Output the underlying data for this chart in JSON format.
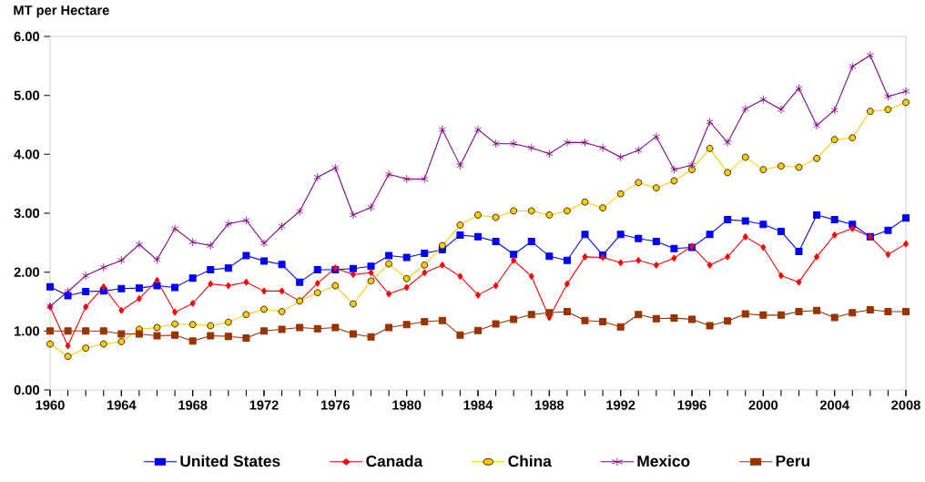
{
  "chart_data": {
    "type": "line",
    "ylabel": "MT per Hectare",
    "x": [
      1960,
      1961,
      1962,
      1963,
      1964,
      1965,
      1966,
      1967,
      1968,
      1969,
      1970,
      1971,
      1972,
      1973,
      1974,
      1975,
      1976,
      1977,
      1978,
      1979,
      1980,
      1981,
      1982,
      1983,
      1984,
      1985,
      1986,
      1987,
      1988,
      1989,
      1990,
      1991,
      1992,
      1993,
      1994,
      1995,
      1996,
      1997,
      1998,
      1999,
      2000,
      2001,
      2002,
      2003,
      2004,
      2005,
      2006,
      2007,
      2008
    ],
    "xlim": [
      1960,
      2008
    ],
    "xticks": [
      1960,
      1964,
      1968,
      1972,
      1976,
      1980,
      1984,
      1988,
      1992,
      1996,
      2000,
      2004,
      2008
    ],
    "ylim": [
      0,
      6
    ],
    "yticks": [
      {
        "value": 0,
        "label": "0.00"
      },
      {
        "value": 1,
        "label": "1.00"
      },
      {
        "value": 2,
        "label": "2.00"
      },
      {
        "value": 3,
        "label": "3.00"
      },
      {
        "value": 4,
        "label": "4.00"
      },
      {
        "value": 5,
        "label": "5.00"
      },
      {
        "value": 6,
        "label": "6.00"
      }
    ],
    "grid": false,
    "legend": "bottom",
    "line_style": "solid",
    "series": [
      {
        "name": "United States",
        "color": "#0000ff",
        "marker": "square",
        "values": [
          1.75,
          1.6,
          1.67,
          1.68,
          1.72,
          1.73,
          1.77,
          1.74,
          1.9,
          2.04,
          2.07,
          2.28,
          2.19,
          2.13,
          1.83,
          2.04,
          2.04,
          2.06,
          2.1,
          2.28,
          2.25,
          2.32,
          2.38,
          2.63,
          2.6,
          2.52,
          2.3,
          2.52,
          2.27,
          2.2,
          2.64,
          2.29,
          2.64,
          2.57,
          2.52,
          2.4,
          2.42,
          2.64,
          2.89,
          2.87,
          2.81,
          2.69,
          2.35,
          2.97,
          2.89,
          2.81,
          2.6,
          2.71,
          2.92
        ]
      },
      {
        "name": "Canada",
        "color": "#ff0000",
        "marker": "diamond",
        "values": [
          1.41,
          0.75,
          1.41,
          1.75,
          1.35,
          1.55,
          1.86,
          1.32,
          1.47,
          1.8,
          1.77,
          1.83,
          1.68,
          1.68,
          1.51,
          1.81,
          2.07,
          1.96,
          1.99,
          1.63,
          1.74,
          1.99,
          2.12,
          1.93,
          1.61,
          1.77,
          2.2,
          1.93,
          1.23,
          1.8,
          2.26,
          2.25,
          2.16,
          2.2,
          2.12,
          2.24,
          2.44,
          2.12,
          2.26,
          2.6,
          2.42,
          1.94,
          1.83,
          2.26,
          2.63,
          2.74,
          2.6,
          2.3,
          2.48
        ]
      },
      {
        "name": "China",
        "color": "#ffcc00",
        "marker": "circle",
        "values": [
          0.78,
          0.57,
          0.71,
          0.78,
          0.82,
          1.03,
          1.06,
          1.12,
          1.11,
          1.09,
          1.15,
          1.28,
          1.37,
          1.33,
          1.51,
          1.65,
          1.77,
          1.46,
          1.85,
          2.14,
          1.89,
          2.12,
          2.45,
          2.8,
          2.97,
          2.93,
          3.04,
          3.04,
          2.97,
          3.04,
          3.19,
          3.09,
          3.33,
          3.52,
          3.43,
          3.55,
          3.74,
          4.1,
          3.69,
          3.95,
          3.74,
          3.8,
          3.78,
          3.93,
          4.25,
          4.28,
          4.73,
          4.76,
          4.88
        ]
      },
      {
        "name": "Mexico",
        "color": "#800080",
        "marker": "cross",
        "values": [
          1.42,
          1.67,
          1.94,
          2.08,
          2.2,
          2.47,
          2.21,
          2.74,
          2.51,
          2.45,
          2.82,
          2.88,
          2.49,
          2.78,
          3.03,
          3.61,
          3.77,
          2.97,
          3.1,
          3.66,
          3.58,
          3.58,
          4.42,
          3.81,
          4.42,
          4.18,
          4.18,
          4.11,
          4.01,
          4.2,
          4.2,
          4.11,
          3.95,
          4.07,
          4.3,
          3.74,
          3.82,
          4.55,
          4.2,
          4.77,
          4.93,
          4.76,
          5.12,
          4.49,
          4.75,
          5.49,
          5.68,
          4.98,
          5.07
        ]
      },
      {
        "name": "Peru",
        "color": "#993300",
        "marker": "square",
        "values": [
          1.0,
          1.0,
          1.0,
          1.0,
          0.95,
          0.95,
          0.92,
          0.93,
          0.83,
          0.92,
          0.91,
          0.88,
          1.0,
          1.03,
          1.06,
          1.04,
          1.06,
          0.95,
          0.9,
          1.06,
          1.11,
          1.16,
          1.18,
          0.93,
          1.01,
          1.12,
          1.2,
          1.28,
          1.31,
          1.33,
          1.18,
          1.16,
          1.07,
          1.28,
          1.21,
          1.22,
          1.2,
          1.09,
          1.17,
          1.29,
          1.27,
          1.27,
          1.33,
          1.35,
          1.23,
          1.31,
          1.36,
          1.33,
          1.33
        ]
      }
    ]
  }
}
